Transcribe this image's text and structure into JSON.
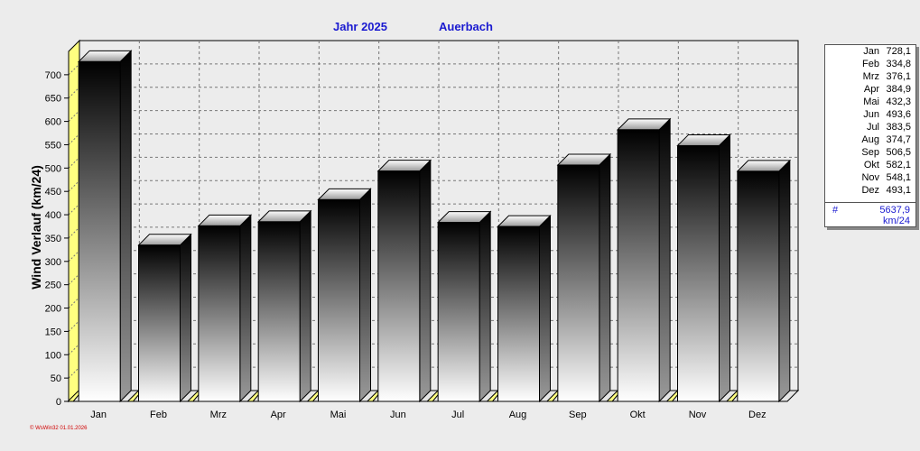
{
  "header": {
    "year_label": "Jahr  2025",
    "station": "Auerbach"
  },
  "chart_data": {
    "type": "bar",
    "ylabel": "Wind Verlauf  (km/24)",
    "xlabel": "",
    "categories": [
      "Jan",
      "Feb",
      "Mrz",
      "Apr",
      "Mai",
      "Jun",
      "Jul",
      "Aug",
      "Sep",
      "Okt",
      "Nov",
      "Dez"
    ],
    "values": [
      728.1,
      334.8,
      376.1,
      384.9,
      432.3,
      493.6,
      383.5,
      374.7,
      506.5,
      582.1,
      548.1,
      493.1
    ],
    "ylim": [
      0,
      750
    ],
    "yticks": [
      0,
      50,
      100,
      150,
      200,
      250,
      300,
      350,
      400,
      450,
      500,
      550,
      600,
      650,
      700
    ],
    "grid": true,
    "legend": "right"
  },
  "legend": {
    "rows": [
      {
        "month": "Jan",
        "value": "728,1"
      },
      {
        "month": "Feb",
        "value": "334,8"
      },
      {
        "month": "Mrz",
        "value": "376,1"
      },
      {
        "month": "Apr",
        "value": "384,9"
      },
      {
        "month": "Mai",
        "value": "432,3"
      },
      {
        "month": "Jun",
        "value": "493,6"
      },
      {
        "month": "Jul",
        "value": "383,5"
      },
      {
        "month": "Aug",
        "value": "374,7"
      },
      {
        "month": "Sep",
        "value": "506,5"
      },
      {
        "month": "Okt",
        "value": "582,1"
      },
      {
        "month": "Nov",
        "value": "548,1"
      },
      {
        "month": "Dez",
        "value": "493,1"
      }
    ],
    "total_symbol": "#",
    "total_value": "5637,9",
    "total_unit": "km/24"
  },
  "footer": {
    "credit": "© WsWin32  01.01.2026"
  }
}
